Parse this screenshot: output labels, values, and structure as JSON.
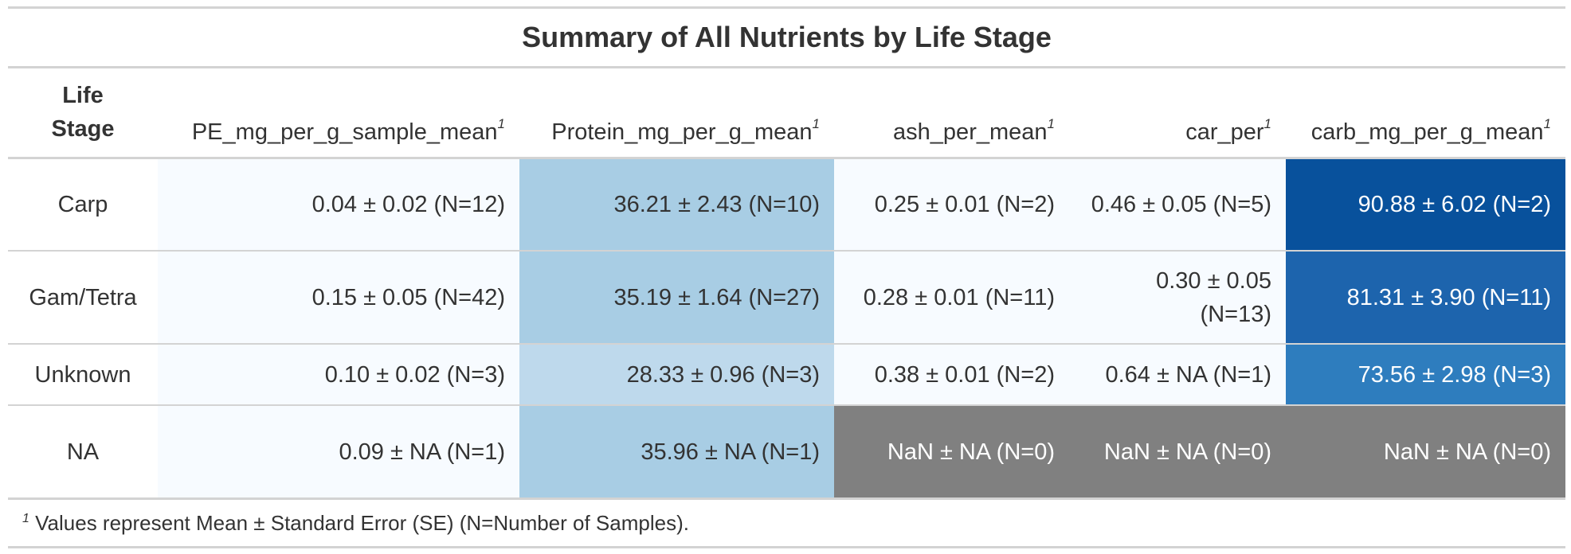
{
  "title": "Summary of All Nutrients by Life Stage",
  "header": {
    "stub_line1": "Life",
    "stub_line2": "Stage",
    "columns": [
      "PE_mg_per_g_sample_mean",
      "Protein_mg_per_g_mean",
      "ash_per_mean",
      "car_per",
      "carb_mg_per_g_mean"
    ],
    "footnote_marker": "1"
  },
  "rows": [
    {
      "stage": "Carp",
      "cells": [
        {
          "text": "0.04 ± 0.02 (N=12)",
          "bg": "#f7fbff",
          "fg": "#333333"
        },
        {
          "text": "36.21 ± 2.43 (N=10)",
          "bg": "#a8cde4",
          "fg": "#333333"
        },
        {
          "text": "0.25 ± 0.01 (N=2)",
          "bg": "#f7fbff",
          "fg": "#333333"
        },
        {
          "text": "0.46 ± 0.05 (N=5)",
          "bg": "#f7fbff",
          "fg": "#333333"
        },
        {
          "text": "90.88 ± 6.02 (N=2)",
          "bg": "#08519c",
          "fg": "#ffffff"
        }
      ]
    },
    {
      "stage": "Gam/Tetra",
      "cells": [
        {
          "text": "0.15 ± 0.05 (N=42)",
          "bg": "#f7fbff",
          "fg": "#333333"
        },
        {
          "text": "35.19 ± 1.64 (N=27)",
          "bg": "#a8cde4",
          "fg": "#333333"
        },
        {
          "text": "0.28 ± 0.01 (N=11)",
          "bg": "#f7fbff",
          "fg": "#333333"
        },
        {
          "text": "0.30 ± 0.05 (N=13)",
          "bg": "#f7fbff",
          "fg": "#333333"
        },
        {
          "text": "81.31 ± 3.90 (N=11)",
          "bg": "#1d64ad",
          "fg": "#ffffff"
        }
      ]
    },
    {
      "stage": "Unknown",
      "cells": [
        {
          "text": "0.10 ± 0.02 (N=3)",
          "bg": "#f7fbff",
          "fg": "#333333"
        },
        {
          "text": "28.33 ± 0.96 (N=3)",
          "bg": "#bed9ec",
          "fg": "#333333"
        },
        {
          "text": "0.38 ± 0.01 (N=2)",
          "bg": "#f7fbff",
          "fg": "#333333"
        },
        {
          "text": "0.64 ± NA (N=1)",
          "bg": "#f7fbff",
          "fg": "#333333"
        },
        {
          "text": "73.56 ± 2.98 (N=3)",
          "bg": "#2e7dbe",
          "fg": "#ffffff"
        }
      ]
    },
    {
      "stage": "NA",
      "cells": [
        {
          "text": "0.09 ± NA (N=1)",
          "bg": "#f7fbff",
          "fg": "#333333"
        },
        {
          "text": "35.96 ± NA (N=1)",
          "bg": "#a8cde4",
          "fg": "#333333"
        },
        {
          "text": "NaN ± NA (N=0)",
          "bg": "#808080",
          "fg": "#ffffff"
        },
        {
          "text": "NaN ± NA (N=0)",
          "bg": "#808080",
          "fg": "#ffffff"
        },
        {
          "text": "NaN ± NA (N=0)",
          "bg": "#808080",
          "fg": "#ffffff"
        }
      ]
    }
  ],
  "footnote": {
    "marker": "1",
    "text": " Values represent Mean ± Standard Error (SE) (N=Number of Samples)."
  }
}
